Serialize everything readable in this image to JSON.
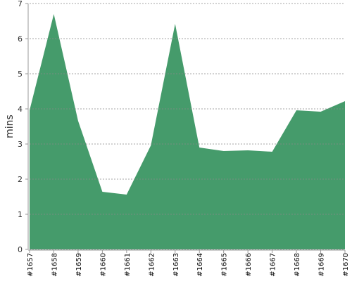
{
  "chart_data": {
    "type": "area",
    "y_label": "mins",
    "categories": [
      "#1657",
      "#1658",
      "#1659",
      "#1660",
      "#1661",
      "#1662",
      "#1663",
      "#1664",
      "#1665",
      "#1666",
      "#1667",
      "#1668",
      "#1669",
      "#1670"
    ],
    "values": [
      3.96,
      6.7,
      3.66,
      1.64,
      1.56,
      2.96,
      6.42,
      2.9,
      2.8,
      2.82,
      2.78,
      3.96,
      3.92,
      4.22
    ],
    "color": "#459b6b",
    "ylim": [
      0,
      7
    ],
    "yticks": [
      0,
      1,
      2,
      3,
      4,
      5,
      6,
      7
    ],
    "grid": true
  }
}
